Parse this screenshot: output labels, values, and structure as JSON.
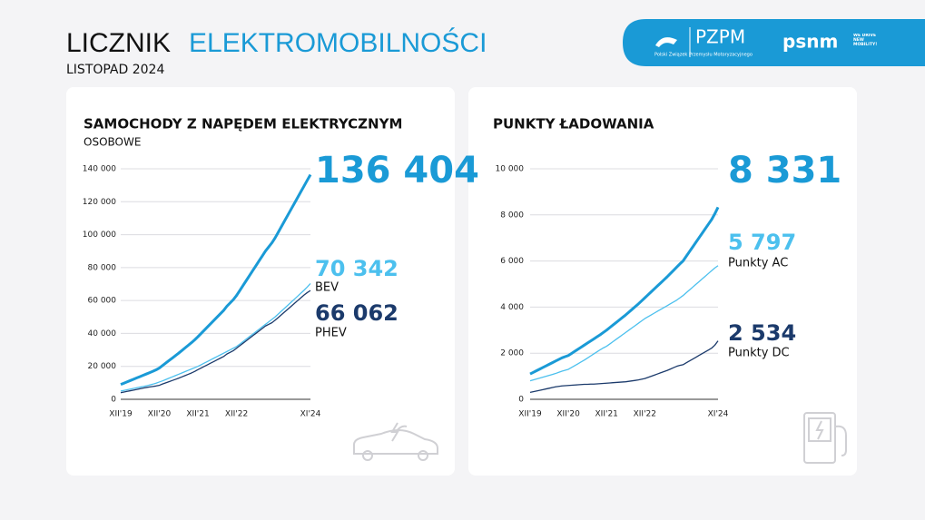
{
  "header": {
    "title_dark": "LICZNIK",
    "title_blue": "ELEKTROMOBILNOŚCI",
    "subtitle": "LISTOPAD 2024"
  },
  "logos": {
    "pzpm": "PZPM",
    "pzpm_full": "Polski Związek Przemysłu Motoryzacyjnego",
    "psnm": "psnm",
    "psnm_slogan": "WE DRIVE NEW MOBILITY!"
  },
  "chart_data": [
    {
      "type": "line",
      "title": "SAMOCHODY Z NAPĘDEM ELEKTRYCZNYM",
      "subtitle": "OSOBOWE",
      "categories": [
        "XII'19",
        null,
        null,
        null,
        null,
        null,
        null,
        null,
        null,
        null,
        null,
        null,
        "XII'20",
        null,
        null,
        null,
        null,
        null,
        null,
        null,
        null,
        null,
        null,
        null,
        "XII'21",
        null,
        null,
        null,
        null,
        null,
        null,
        null,
        null,
        null,
        null,
        null,
        "XII'22",
        null,
        null,
        null,
        null,
        null,
        null,
        null,
        null,
        null,
        null,
        null,
        null,
        null,
        null,
        null,
        null,
        null,
        null,
        null,
        null,
        null,
        null,
        "XI'24"
      ],
      "ylim": [
        0,
        140000
      ],
      "yticks": [
        0,
        {
          "value": 20000,
          "label": "20 000"
        },
        {
          "value": 40000,
          "label": "40 000"
        },
        {
          "value": 60000,
          "label": "60 000"
        },
        {
          "value": 80000,
          "label": "80 000"
        },
        {
          "value": 100000,
          "label": "100 000"
        },
        {
          "value": 120000,
          "label": "120 000"
        },
        {
          "value": 140000,
          "label": "140 000"
        }
      ],
      "grid": true,
      "series": [
        {
          "color": "#1a9ad6",
          "values": [
            9000,
            9800,
            10600,
            11400,
            12200,
            13000,
            13800,
            14600,
            15400,
            16200,
            17000,
            17900,
            19000,
            20500,
            22000,
            23500,
            25000,
            26500,
            28000,
            29600,
            31200,
            32800,
            34400,
            36100,
            38000,
            40000,
            42000,
            44000,
            46000,
            48000,
            50000,
            52000,
            54000,
            56500,
            58500,
            60500,
            63000,
            66000,
            69000,
            72000,
            75000,
            78000,
            81000,
            84000,
            87000,
            90000,
            92500,
            95000,
            98000,
            101500,
            105000,
            108500,
            112000,
            115500,
            119000,
            122500,
            126000,
            129500,
            133000,
            136404
          ],
          "value_labels": [
            null,
            null,
            null,
            null,
            null,
            null,
            null,
            null,
            null,
            null,
            null,
            null,
            null,
            null,
            null,
            null,
            null,
            null,
            null,
            null,
            null,
            null,
            null,
            null,
            null,
            null,
            null,
            null,
            null,
            null,
            null,
            null,
            null,
            null,
            null,
            null,
            null,
            null,
            null,
            null,
            null,
            null,
            null,
            null,
            null,
            null,
            null,
            null,
            null,
            null,
            null,
            null,
            null,
            null,
            null,
            null,
            null,
            null,
            null,
            "136 404"
          ]
        },
        {
          "name": "BEV",
          "color": "#4cc0ee",
          "values": [
            5000,
            5400,
            5800,
            6200,
            6600,
            7000,
            7400,
            7800,
            8200,
            8700,
            9200,
            9800,
            10500,
            11200,
            12000,
            12800,
            13600,
            14400,
            15200,
            16000,
            16800,
            17600,
            18400,
            19200,
            20000,
            21000,
            22000,
            23000,
            24000,
            25000,
            26000,
            27000,
            28000,
            29000,
            30000,
            31000,
            32000,
            33500,
            35000,
            36500,
            38000,
            39500,
            41000,
            42500,
            44000,
            45500,
            47000,
            48500,
            50000,
            51800,
            53600,
            55400,
            57200,
            59000,
            60800,
            62600,
            64400,
            66200,
            68200,
            70342
          ],
          "value_labels": [
            null,
            null,
            null,
            null,
            null,
            null,
            null,
            null,
            null,
            null,
            null,
            null,
            null,
            null,
            null,
            null,
            null,
            null,
            null,
            null,
            null,
            null,
            null,
            null,
            null,
            null,
            null,
            null,
            null,
            null,
            null,
            null,
            null,
            null,
            null,
            null,
            null,
            null,
            null,
            null,
            null,
            null,
            null,
            null,
            null,
            null,
            null,
            null,
            null,
            null,
            null,
            null,
            null,
            null,
            null,
            null,
            null,
            null,
            null,
            "70 342"
          ]
        },
        {
          "name": "PHEV",
          "color": "#1b3a6b",
          "values": [
            4000,
            4400,
            4800,
            5200,
            5600,
            6000,
            6400,
            6800,
            7200,
            7500,
            7800,
            8100,
            8500,
            9300,
            10000,
            10700,
            11400,
            12100,
            12800,
            13600,
            14400,
            15200,
            16000,
            16900,
            18000,
            19000,
            20000,
            21000,
            22000,
            23000,
            24000,
            25000,
            26000,
            27500,
            28500,
            29500,
            31000,
            32500,
            34000,
            35500,
            37000,
            38500,
            40000,
            41500,
            43000,
            44500,
            45500,
            46500,
            48000,
            49700,
            51400,
            53100,
            54800,
            56500,
            58200,
            59900,
            61600,
            63300,
            64800,
            66062
          ],
          "value_labels": [
            null,
            null,
            null,
            null,
            null,
            null,
            null,
            null,
            null,
            null,
            null,
            null,
            null,
            null,
            null,
            null,
            null,
            null,
            null,
            null,
            null,
            null,
            null,
            null,
            null,
            null,
            null,
            null,
            null,
            null,
            null,
            null,
            null,
            null,
            null,
            null,
            null,
            null,
            null,
            null,
            null,
            null,
            null,
            null,
            null,
            null,
            null,
            null,
            null,
            null,
            null,
            null,
            null,
            null,
            null,
            null,
            null,
            null,
            null,
            "66 062"
          ]
        }
      ]
    },
    {
      "type": "line",
      "title": "PUNKTY ŁADOWANIA",
      "categories": [
        "XII'19",
        null,
        null,
        null,
        null,
        null,
        null,
        null,
        null,
        null,
        null,
        null,
        "XII'20",
        null,
        null,
        null,
        null,
        null,
        null,
        null,
        null,
        null,
        null,
        null,
        "XII'21",
        null,
        null,
        null,
        null,
        null,
        null,
        null,
        null,
        null,
        null,
        null,
        "XII'22",
        null,
        null,
        null,
        null,
        null,
        null,
        null,
        null,
        null,
        null,
        null,
        null,
        null,
        null,
        null,
        null,
        null,
        null,
        null,
        null,
        null,
        null,
        "XI'24"
      ],
      "ylim": [
        0,
        10000
      ],
      "yticks": [
        0,
        {
          "value": 2000,
          "label": "2 000"
        },
        {
          "value": 4000,
          "label": "4 000"
        },
        {
          "value": 6000,
          "label": "6 000"
        },
        {
          "value": 8000,
          "label": "8 000"
        },
        {
          "value": 10000,
          "label": "10 000"
        }
      ],
      "grid": true,
      "series": [
        {
          "color": "#1a9ad6",
          "values": [
            1100,
            1170,
            1240,
            1310,
            1380,
            1450,
            1520,
            1590,
            1660,
            1730,
            1800,
            1850,
            1900,
            1990,
            2080,
            2170,
            2260,
            2350,
            2440,
            2530,
            2620,
            2710,
            2800,
            2900,
            3000,
            3110,
            3220,
            3330,
            3440,
            3550,
            3660,
            3780,
            3900,
            4020,
            4140,
            4270,
            4400,
            4530,
            4660,
            4790,
            4920,
            5050,
            5180,
            5310,
            5450,
            5590,
            5730,
            5870,
            6000,
            6200,
            6400,
            6600,
            6800,
            7000,
            7200,
            7400,
            7600,
            7800,
            8050,
            8331
          ],
          "value_labels": [
            null,
            null,
            null,
            null,
            null,
            null,
            null,
            null,
            null,
            null,
            null,
            null,
            null,
            null,
            null,
            null,
            null,
            null,
            null,
            null,
            null,
            null,
            null,
            null,
            null,
            null,
            null,
            null,
            null,
            null,
            null,
            null,
            null,
            null,
            null,
            null,
            null,
            null,
            null,
            null,
            null,
            null,
            null,
            null,
            null,
            null,
            null,
            null,
            null,
            null,
            null,
            null,
            null,
            null,
            null,
            null,
            null,
            null,
            null,
            "8 331"
          ]
        },
        {
          "name": "Punkty AC",
          "color": "#4cc0ee",
          "values": [
            800,
            840,
            880,
            920,
            960,
            1000,
            1040,
            1080,
            1120,
            1170,
            1220,
            1260,
            1300,
            1380,
            1460,
            1540,
            1620,
            1700,
            1790,
            1880,
            1970,
            2060,
            2150,
            2230,
            2300,
            2400,
            2500,
            2600,
            2700,
            2800,
            2900,
            3000,
            3100,
            3200,
            3300,
            3400,
            3500,
            3580,
            3660,
            3740,
            3820,
            3900,
            3980,
            4060,
            4140,
            4220,
            4300,
            4400,
            4500,
            4620,
            4740,
            4860,
            4980,
            5100,
            5220,
            5340,
            5460,
            5580,
            5700,
            5797
          ],
          "value_labels": [
            null,
            null,
            null,
            null,
            null,
            null,
            null,
            null,
            null,
            null,
            null,
            null,
            null,
            null,
            null,
            null,
            null,
            null,
            null,
            null,
            null,
            null,
            null,
            null,
            null,
            null,
            null,
            null,
            null,
            null,
            null,
            null,
            null,
            null,
            null,
            null,
            null,
            null,
            null,
            null,
            null,
            null,
            null,
            null,
            null,
            null,
            null,
            null,
            null,
            null,
            null,
            null,
            null,
            null,
            null,
            null,
            null,
            null,
            null,
            "5 797"
          ]
        },
        {
          "name": "Punkty DC",
          "color": "#1b3a6b",
          "values": [
            300,
            330,
            360,
            390,
            420,
            450,
            480,
            510,
            540,
            560,
            580,
            590,
            600,
            610,
            620,
            630,
            640,
            650,
            650,
            660,
            660,
            670,
            680,
            690,
            700,
            710,
            720,
            730,
            740,
            750,
            760,
            780,
            800,
            820,
            840,
            870,
            900,
            950,
            1000,
            1050,
            1100,
            1150,
            1200,
            1250,
            1310,
            1370,
            1430,
            1470,
            1500,
            1580,
            1660,
            1740,
            1820,
            1900,
            1980,
            2060,
            2140,
            2220,
            2350,
            2534
          ],
          "value_labels": [
            null,
            null,
            null,
            null,
            null,
            null,
            null,
            null,
            null,
            null,
            null,
            null,
            null,
            null,
            null,
            null,
            null,
            null,
            null,
            null,
            null,
            null,
            null,
            null,
            null,
            null,
            null,
            null,
            null,
            null,
            null,
            null,
            null,
            null,
            null,
            null,
            null,
            null,
            null,
            null,
            null,
            null,
            null,
            null,
            null,
            null,
            null,
            null,
            null,
            null,
            null,
            null,
            null,
            null,
            null,
            null,
            null,
            null,
            null,
            "2 534"
          ]
        }
      ]
    }
  ]
}
